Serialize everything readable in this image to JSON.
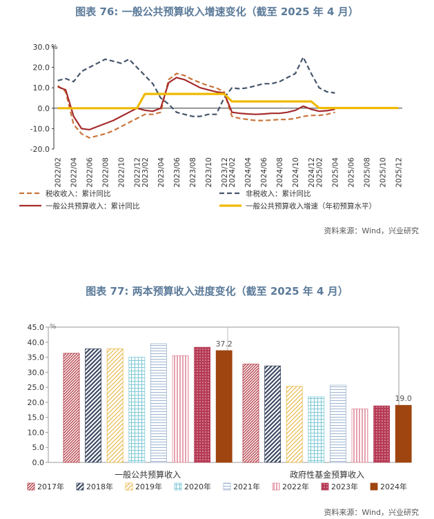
{
  "chart_data": [
    {
      "type": "line",
      "title": "图表 76: 一般公共预算收入增速变化（截至 2025 年 4 月）",
      "unit": "%",
      "ylim": [
        -20,
        30
      ],
      "yticks": [
        "30.0",
        "20.0",
        "10.0",
        "0.0",
        "-10.0",
        "-20.0"
      ],
      "ytick_values": [
        30,
        20,
        10,
        0,
        -10,
        -20
      ],
      "x": [
        "2022/02",
        "2022/03",
        "2022/04",
        "2022/05",
        "2022/06",
        "2022/07",
        "2022/08",
        "2022/09",
        "2022/10",
        "2022/11",
        "2022/12",
        "2023/02",
        "2023/03",
        "2023/04",
        "2023/05",
        "2023/06",
        "2023/07",
        "2023/08",
        "2023/09",
        "2023/10",
        "2023/11",
        "2023/12",
        "2024/02",
        "2024/03",
        "2024/04",
        "2024/05",
        "2024/06",
        "2024/07",
        "2024/08",
        "2024/09",
        "2024/10",
        "2024/11",
        "2024/12",
        "2025/02",
        "2025/03",
        "2025/04",
        "2025/05",
        "2025/06",
        "2025/07",
        "2025/08",
        "2025/09",
        "2025/10",
        "2025/11",
        "2025/12"
      ],
      "xticks": [
        "2022/02",
        "2022/04",
        "2022/06",
        "2022/08",
        "2022/10",
        "2022/12",
        "2023/02",
        "2023/04",
        "2023/06",
        "2023/08",
        "2023/10",
        "2023/12",
        "2024/02",
        "2024/04",
        "2024/06",
        "2024/08",
        "2024/10",
        "2024/12",
        "2025/02",
        "2025/04",
        "2025/06",
        "2025/08",
        "2025/10",
        "2025/12"
      ],
      "series": [
        {
          "name": "税收收入：累计同比",
          "style": "dashed",
          "color": "#c8743a",
          "values": [
            11,
            8,
            -8,
            -12.5,
            -14.5,
            -13.5,
            -12.5,
            -11,
            -9,
            -7,
            -5,
            -3,
            -3,
            -2,
            14,
            17,
            16,
            14,
            12.5,
            11,
            10,
            8,
            -4,
            -5,
            -5.5,
            -6,
            -6,
            -5.8,
            -5.5,
            -5.5,
            -5,
            -4,
            -3.5,
            -3.5,
            -3,
            -2,
            null,
            null,
            null,
            null,
            null,
            null,
            null,
            null
          ]
        },
        {
          "name": "非税收入：累计同比",
          "style": "dashed",
          "color": "#44546a",
          "values": [
            13.5,
            14.5,
            13,
            18,
            20,
            22,
            24,
            23,
            22,
            24,
            20,
            16,
            12,
            5,
            2,
            -2,
            -3,
            -4,
            -4,
            -3,
            -3,
            5,
            10,
            9.5,
            10,
            11,
            12,
            12,
            13,
            15,
            17,
            25,
            17,
            10,
            8,
            7.5,
            null,
            null,
            null,
            null,
            null,
            null,
            null,
            null
          ]
        },
        {
          "name": "一般公共预算收入：累计同比",
          "style": "solid",
          "color": "#a52a2a",
          "values": [
            10.5,
            9,
            -4,
            -10,
            -10.5,
            -9,
            -7.5,
            -6,
            -4,
            -2,
            0,
            -1,
            -1.5,
            0,
            12.5,
            15,
            14,
            12,
            10,
            9,
            8,
            7.5,
            -2,
            -2.5,
            -2.8,
            -3,
            -2.8,
            -2.5,
            -2.5,
            -2,
            -1,
            1,
            -0.5,
            -1.5,
            -1.2,
            -0.5,
            null,
            null,
            null,
            null,
            null,
            null,
            null,
            null
          ]
        },
        {
          "name": "一般公共预算收入增速（年初预算水平）",
          "style": "solid",
          "color": "#f0b900",
          "values": [
            0,
            0,
            0,
            0,
            0,
            0,
            0,
            0,
            0,
            0,
            0,
            7,
            7,
            7,
            7,
            7,
            7,
            7,
            7,
            7,
            7,
            7,
            3.3,
            3.3,
            3.3,
            3.3,
            3.3,
            3.3,
            3.3,
            3.3,
            3.3,
            3.3,
            3.3,
            0.1,
            0.1,
            0.1,
            0.1,
            0.1,
            0.1,
            0.1,
            0.1,
            0.1,
            0.1,
            0.1
          ]
        }
      ],
      "legend_placement": "bottom"
    },
    {
      "type": "bar",
      "title": "图表 77: 两本预算收入进度变化（截至 2025 年 4 月）",
      "unit": "%",
      "ylim": [
        0,
        45
      ],
      "yticks": [
        "0.0",
        "5.0",
        "10.0",
        "15.0",
        "20.0",
        "25.0",
        "30.0",
        "35.0",
        "40.0",
        "45.0"
      ],
      "ytick_values": [
        0,
        5,
        10,
        15,
        20,
        25,
        30,
        35,
        40,
        45
      ],
      "categories": [
        "一般公共预算收入",
        "政府性基金预算收入"
      ],
      "series": [
        {
          "name": "2017年",
          "color": "#b5404a",
          "pattern": "diag-dense",
          "values": [
            36.3,
            32.7
          ]
        },
        {
          "name": "2018年",
          "color": "#3c4a63",
          "pattern": "diag",
          "values": [
            37.8,
            32.1
          ]
        },
        {
          "name": "2019年",
          "color": "#e8b84a",
          "pattern": "diag-light",
          "values": [
            37.8,
            25.3
          ]
        },
        {
          "name": "2020年",
          "color": "#7cc8d4",
          "pattern": "grid",
          "values": [
            35.0,
            21.8
          ]
        },
        {
          "name": "2021年",
          "color": "#9db4d0",
          "pattern": "hlines",
          "values": [
            39.5,
            25.7
          ]
        },
        {
          "name": "2022年",
          "color": "#e0899a",
          "pattern": "vlines",
          "values": [
            35.5,
            17.8
          ]
        },
        {
          "name": "2023年",
          "color": "#b53a55",
          "pattern": "dots",
          "values": [
            38.3,
            18.8
          ]
        },
        {
          "name": "2024年",
          "color": "#9e4510",
          "pattern": "solid",
          "values": [
            37.2,
            19.0
          ]
        }
      ],
      "data_labels": [
        {
          "series": "2024年",
          "category": "一般公共预算收入",
          "text": "37.2"
        },
        {
          "series": "2024年",
          "category": "政府性基金预算收入",
          "text": "19.0"
        }
      ],
      "legend_placement": "bottom"
    }
  ],
  "sources": [
    "资料来源：Wind，兴业研究",
    "资料来源：Wind，兴业研究"
  ]
}
